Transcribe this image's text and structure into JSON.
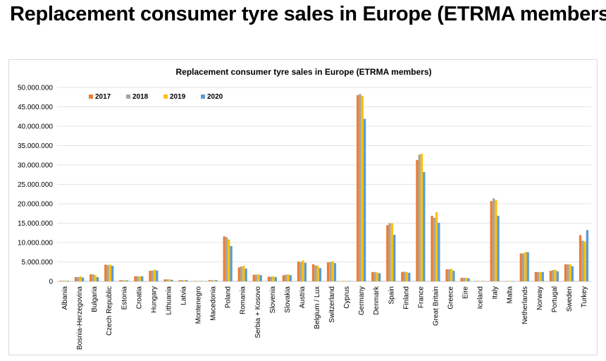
{
  "page": {
    "title": "Replacement consumer tyre sales in Europe (ETRMA members)"
  },
  "chart_data": {
    "type": "bar",
    "title": "Replacement consumer tyre sales in Europe (ETRMA members)",
    "xlabel": "",
    "ylabel": "",
    "ylim": [
      0,
      50000000
    ],
    "y_ticks": [
      "0",
      "5.000.000",
      "10.000.000",
      "15.000.000",
      "20.000.000",
      "25.000.000",
      "30.000.000",
      "35.000.000",
      "40.000.000",
      "45.000.000",
      "50.000.000"
    ],
    "grid": true,
    "legend_position": "top-left",
    "categories": [
      "Albania",
      "Bosnia-Herzegovina",
      "Bulgaria",
      "Czech Republic",
      "Estonia",
      "Croatia",
      "Hungary",
      "Lithuania",
      "Latvia",
      "Montenegro",
      "Macedonia",
      "Poland",
      "Romania",
      "Serbia + Kosovo",
      "Slovenia",
      "Slovakia",
      "Austria",
      "Belgium / Lux",
      "Switzerland",
      "Cyprus",
      "Germany",
      "Denmark",
      "Spain",
      "Finland",
      "France",
      "Great Britain",
      "Greece",
      "Eire",
      "Iceland",
      "Italy",
      "Malta",
      "Netherlands",
      "Norway",
      "Portugal",
      "Sweden",
      "Turkey"
    ],
    "series": [
      {
        "name": "2017",
        "color": "#ED7D31",
        "values": [
          150000,
          1100000,
          1800000,
          4300000,
          300000,
          1300000,
          2700000,
          500000,
          300000,
          100000,
          300000,
          11600000,
          3600000,
          1700000,
          1200000,
          1600000,
          5100000,
          4400000,
          4900000,
          100000,
          48000000,
          2400000,
          14500000,
          2400000,
          31300000,
          16900000,
          3100000,
          900000,
          100000,
          20700000,
          50000,
          7200000,
          2400000,
          2700000,
          4400000,
          11900000
        ]
      },
      {
        "name": "2018",
        "color": "#A5A5A5",
        "values": [
          150000,
          1100000,
          1800000,
          4200000,
          300000,
          1300000,
          2800000,
          500000,
          300000,
          100000,
          300000,
          11400000,
          3800000,
          1700000,
          1200000,
          1700000,
          5000000,
          4100000,
          5000000,
          100000,
          48300000,
          2400000,
          15000000,
          2500000,
          32700000,
          16400000,
          3100000,
          900000,
          100000,
          21400000,
          50000,
          7200000,
          2400000,
          2900000,
          4400000,
          10500000
        ]
      },
      {
        "name": "2019",
        "color": "#FFC000",
        "values": [
          150000,
          1300000,
          1600000,
          4300000,
          300000,
          1300000,
          3000000,
          500000,
          300000,
          100000,
          300000,
          10800000,
          4000000,
          1800000,
          1300000,
          1800000,
          5400000,
          4000000,
          5200000,
          100000,
          47800000,
          2300000,
          15000000,
          2400000,
          32900000,
          17800000,
          3200000,
          900000,
          100000,
          21000000,
          50000,
          7600000,
          2400000,
          3000000,
          4400000,
          10300000
        ]
      },
      {
        "name": "2020",
        "color": "#5B9BD5",
        "values": [
          150000,
          1000000,
          1100000,
          4000000,
          250000,
          1300000,
          2800000,
          400000,
          300000,
          100000,
          300000,
          9100000,
          3300000,
          1600000,
          1100000,
          1600000,
          4800000,
          3400000,
          4700000,
          100000,
          41900000,
          2100000,
          12000000,
          2200000,
          28200000,
          15100000,
          2700000,
          800000,
          100000,
          16900000,
          50000,
          7500000,
          2400000,
          2600000,
          3900000,
          13200000
        ]
      }
    ]
  }
}
